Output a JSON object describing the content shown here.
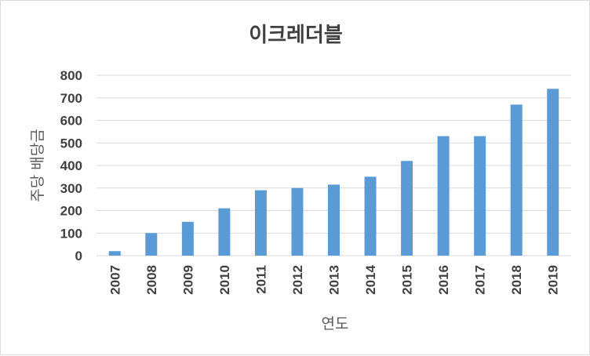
{
  "chart_data": {
    "type": "bar",
    "title": "이크레더블",
    "xlabel": "연도",
    "ylabel": "주당 배당금",
    "categories": [
      "2007",
      "2008",
      "2009",
      "2010",
      "2011",
      "2012",
      "2013",
      "2014",
      "2015",
      "2016",
      "2017",
      "2018",
      "2019"
    ],
    "values": [
      20,
      100,
      150,
      210,
      290,
      300,
      315,
      350,
      420,
      530,
      530,
      670,
      740
    ],
    "ylim": [
      0,
      800
    ],
    "yticks": [
      "0",
      "100",
      "200",
      "300",
      "400",
      "500",
      "600",
      "700",
      "800"
    ],
    "grid": true,
    "legend": "none",
    "colors": {
      "bar": "#5b9bd5",
      "grid": "#d9d9d9",
      "text": "#404040"
    }
  }
}
